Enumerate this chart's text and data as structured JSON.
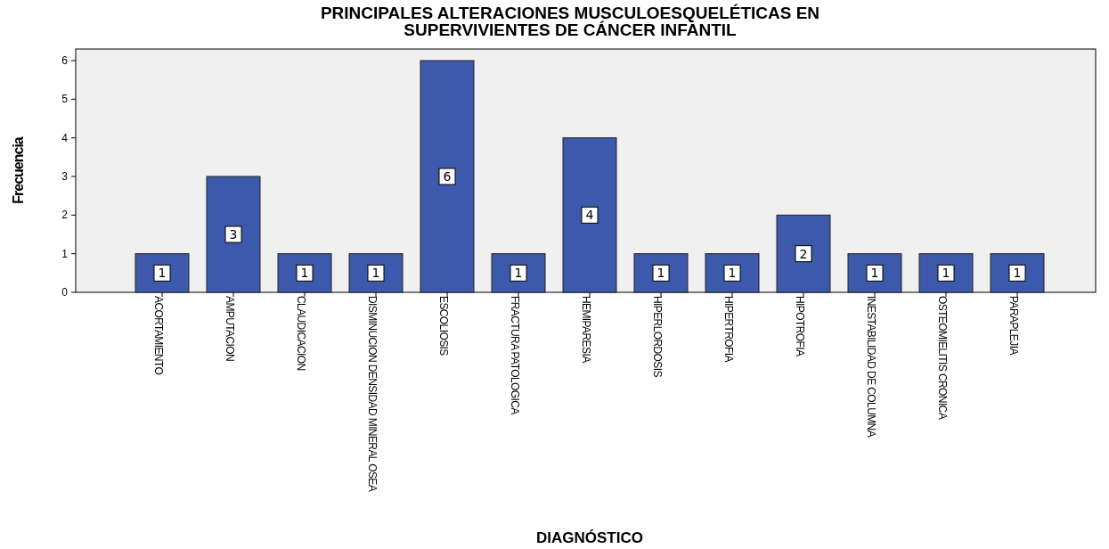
{
  "chart_data": {
    "type": "bar",
    "title": "PRINCIPALES ALTERACIONES MUSCULOESQUELÉTICAS EN SUPERVIVIENTES DE CÁNCER INFANTIL",
    "xlabel": "DIAGNÓSTICO",
    "ylabel": "Frecuencia",
    "categories": [
      "ACORTAMIENTO",
      "AMPUTACION",
      "CLAUDICACION",
      "DISMINUCION DENSIDAD MINERAL OSEA",
      "ESCOLIOSIS",
      "FRACTURA PATOLOGICA",
      "HEMIPARESIA",
      "HIPERLORDOSIS",
      "HIPERTROFIA",
      "HIPOTROFIA",
      "INESTABILIDAD DE COLUMNA",
      "OSTEOMIELITIS CRONICA",
      "PARAPLEJIA"
    ],
    "values": [
      1,
      3,
      1,
      1,
      6,
      1,
      4,
      1,
      1,
      2,
      1,
      1,
      1
    ],
    "color": "#3d59ab",
    "ylim": [
      0,
      6.3
    ],
    "yticks": [
      0,
      1,
      2,
      3,
      4,
      5,
      6
    ],
    "data_labels": true,
    "grid": false
  }
}
